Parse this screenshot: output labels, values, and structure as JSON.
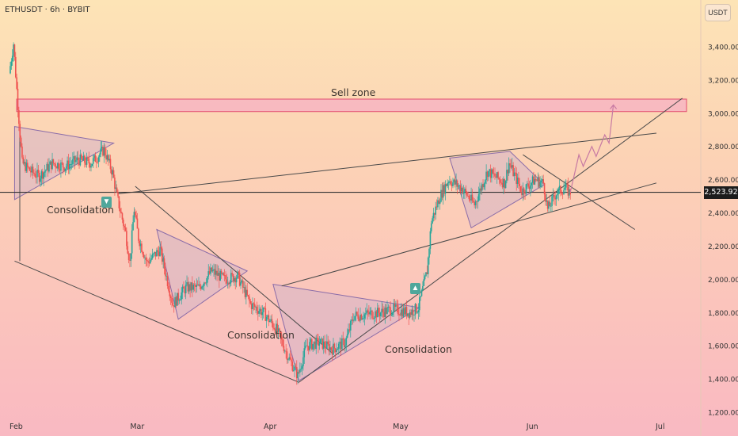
{
  "header": {
    "symbol": "ETHUSDT · 6h · BYBIT",
    "currency": "USDT"
  },
  "last_price": {
    "label": "2,523.92",
    "value": 2523.92
  },
  "chart_data": {
    "type": "candlestick",
    "title": "",
    "x_ticks": [
      "Feb",
      "Mar",
      "Apr",
      "May",
      "Jun",
      "Jul"
    ],
    "y_ticks": [
      3400,
      3200,
      3000,
      2800,
      2600,
      2400,
      2200,
      2000,
      1800,
      1600,
      1400,
      1200
    ],
    "y_tick_labels": [
      "3,400.00",
      "3,200.00",
      "3,000.00",
      "2,800.00",
      "2,600.00",
      "2,400.00",
      "2,200.00",
      "2,000.00",
      "1,800.00",
      "1,600.00",
      "1,400.00",
      "1,200.00"
    ],
    "ylim": [
      1160,
      3640
    ],
    "x_range": [
      "Feb 1",
      "Jul 8"
    ],
    "price_path": [
      [
        "Feb 1",
        3240
      ],
      [
        "Feb 2",
        3420
      ],
      [
        "Feb 3",
        3050
      ],
      [
        "Feb 4",
        2700
      ],
      [
        "Feb 6",
        2650
      ],
      [
        "Feb 8",
        2620
      ],
      [
        "Feb 11",
        2700
      ],
      [
        "Feb 14",
        2680
      ],
      [
        "Feb 17",
        2720
      ],
      [
        "Feb 20",
        2700
      ],
      [
        "Feb 23",
        2780
      ],
      [
        "Feb 25",
        2640
      ],
      [
        "Feb 26",
        2500
      ],
      [
        "Feb 28",
        2280
      ],
      [
        "Mar 1",
        2100
      ],
      [
        "Mar 2",
        2420
      ],
      [
        "Mar 3",
        2250
      ],
      [
        "Mar 5",
        2100
      ],
      [
        "Mar 8",
        2180
      ],
      [
        "Mar 11",
        1850
      ],
      [
        "Mar 14",
        1950
      ],
      [
        "Mar 17",
        1950
      ],
      [
        "Mar 20",
        2050
      ],
      [
        "Mar 23",
        2000
      ],
      [
        "Mar 26",
        2020
      ],
      [
        "Mar 29",
        1850
      ],
      [
        "Apr 1",
        1800
      ],
      [
        "Apr 4",
        1700
      ],
      [
        "Apr 7",
        1520
      ],
      [
        "Apr 9",
        1420
      ],
      [
        "Apr 11",
        1600
      ],
      [
        "Apr 14",
        1620
      ],
      [
        "Apr 17",
        1580
      ],
      [
        "Apr 20",
        1620
      ],
      [
        "Apr 22",
        1780
      ],
      [
        "Apr 25",
        1790
      ],
      [
        "Apr 28",
        1800
      ],
      [
        "May 1",
        1820
      ],
      [
        "May 5",
        1800
      ],
      [
        "May 7",
        1830
      ],
      [
        "May 9",
        2050
      ],
      [
        "May 10",
        2350
      ],
      [
        "May 12",
        2500
      ],
      [
        "May 14",
        2600
      ],
      [
        "May 17",
        2550
      ],
      [
        "May 20",
        2450
      ],
      [
        "May 23",
        2650
      ],
      [
        "May 27",
        2580
      ],
      [
        "May 28",
        2700
      ],
      [
        "May 31",
        2530
      ],
      [
        "Jun 3",
        2600
      ],
      [
        "Jun 5",
        2580
      ],
      [
        "Jun 6",
        2420
      ],
      [
        "Jun 8",
        2520
      ],
      [
        "Jun 10",
        2550
      ],
      [
        "Jun 11",
        2524
      ]
    ],
    "projection": [
      [
        "Jun 11",
        2524
      ],
      [
        "Jun 13",
        2750
      ],
      [
        "Jun 14",
        2680
      ],
      [
        "Jun 16",
        2800
      ],
      [
        "Jun 17",
        2740
      ],
      [
        "Jun 19",
        2870
      ],
      [
        "Jun 20",
        2820
      ],
      [
        "Jun 21",
        3050
      ]
    ],
    "zones": [
      {
        "label": "Sell zone",
        "from": 3010,
        "to": 3085,
        "x0": "Feb 1",
        "x1": "Jul 8"
      }
    ],
    "horizontal_lines": [
      2524
    ],
    "trendlines": [
      {
        "points": [
          [
            "Feb 2",
            2110
          ],
          [
            "Apr 9",
            1380
          ]
        ]
      },
      {
        "points": [
          [
            "Apr 9",
            1380
          ],
          [
            "Jul 7",
            3090
          ]
        ]
      },
      {
        "points": [
          [
            "Feb 26",
            2515
          ],
          [
            "Jul 1",
            2880
          ]
        ]
      },
      {
        "points": [
          [
            "Apr 5",
            1960
          ],
          [
            "Jul 1",
            2580
          ]
        ]
      },
      {
        "points": [
          [
            "Mar 2",
            2560
          ],
          [
            "Apr 17",
            1550
          ]
        ]
      },
      {
        "points": [
          [
            "May 31",
            2750
          ],
          [
            "Jun 26",
            2300
          ]
        ]
      }
    ],
    "patterns": [
      {
        "type": "triangle",
        "points": [
          [
            "Feb 2",
            2920
          ],
          [
            "Feb 25",
            2820
          ],
          [
            "Feb 2",
            2480
          ]
        ]
      },
      {
        "type": "triangle",
        "points": [
          [
            "Mar 7",
            2300
          ],
          [
            "Mar 28",
            2050
          ],
          [
            "Mar 12",
            1760
          ]
        ]
      },
      {
        "type": "triangle",
        "points": [
          [
            "Apr 3",
            1970
          ],
          [
            "May 7",
            1830
          ],
          [
            "Apr 9",
            1390
          ]
        ]
      },
      {
        "type": "triangle",
        "points": [
          [
            "May 14",
            2730
          ],
          [
            "May 28",
            2770
          ],
          [
            "Jun 5",
            2570
          ],
          [
            "May 19",
            2310
          ]
        ]
      }
    ],
    "annotations": [
      {
        "text": "Sell zone"
      },
      {
        "text": "Consolidation"
      },
      {
        "text": "Consolidation"
      },
      {
        "text": "Consolidation"
      }
    ],
    "markers": [
      {
        "direction": "down",
        "icon": "arrow-down-icon"
      },
      {
        "direction": "up",
        "icon": "arrow-up-icon"
      }
    ],
    "colors": {
      "up": "#26a69a",
      "down": "#ef5350",
      "zone_fill": "#f6b3c3",
      "zone_stroke": "#e24d6e",
      "pattern_fill": "#d5b4c6",
      "pattern_stroke": "#8a6ca8",
      "line": "#4a4a4a",
      "projection": "#c77aa3"
    },
    "grid": false
  }
}
